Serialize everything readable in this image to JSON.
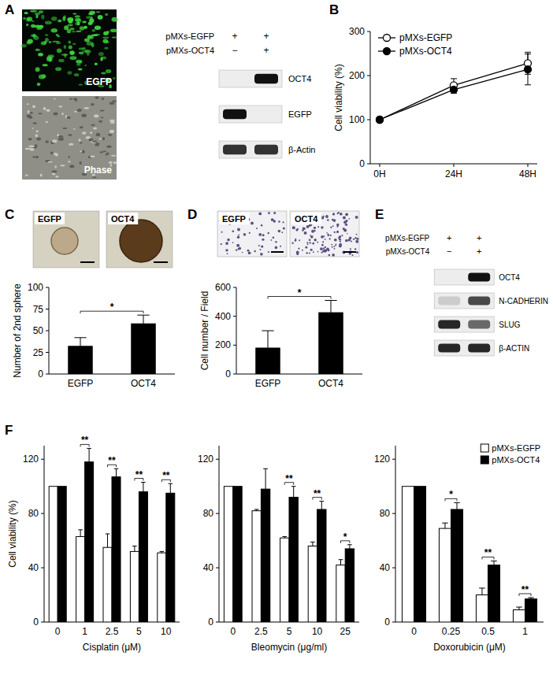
{
  "figure": {
    "panel_letters": [
      "A",
      "B",
      "C",
      "D",
      "E",
      "F"
    ],
    "panel_a": {
      "images": [
        "EGFP",
        "Phase"
      ],
      "blot": {
        "header": [
          {
            "label": "pMXs-EGFP",
            "lanes": [
              "+",
              "+"
            ]
          },
          {
            "label": "pMXs-OCT4",
            "lanes": [
              "−",
              "+"
            ]
          }
        ],
        "rows": [
          {
            "label": "OCT4",
            "signal": [
              0,
              1
            ]
          },
          {
            "label": "EGFP",
            "signal": [
              1,
              0
            ]
          },
          {
            "label": "β-Actin",
            "signal": [
              0.85,
              0.85
            ]
          }
        ]
      }
    },
    "panel_c": {
      "images": [
        "EGFP",
        "OCT4"
      ]
    },
    "panel_d": {
      "images": [
        "EGFP",
        "OCT4"
      ]
    },
    "panel_e": {
      "blot": {
        "header": [
          {
            "label": "pMXs-EGFP",
            "lanes": [
              "+",
              "+"
            ]
          },
          {
            "label": "pMXs-OCT4",
            "lanes": [
              "−",
              "+"
            ]
          }
        ],
        "rows": [
          {
            "label": "OCT4",
            "signal": [
              0,
              1
            ]
          },
          {
            "label": "N-CADHERIN",
            "signal": [
              0.15,
              0.75
            ]
          },
          {
            "label": "SLUG",
            "signal": [
              0.9,
              0.6
            ]
          },
          {
            "label": "β-ACTIN",
            "signal": [
              0.9,
              0.9
            ]
          }
        ]
      }
    }
  },
  "chart_data": [
    {
      "type": "line",
      "y_label": "Cell viability (%)",
      "categories": [
        "0H",
        "24H",
        "48H"
      ],
      "series": [
        {
          "name": "pMXs-EGFP",
          "color": "#000000",
          "marker": "open-circle",
          "values": [
            100,
            178,
            228
          ],
          "errors": [
            0,
            15,
            25
          ]
        },
        {
          "name": "pMXs-OCT4",
          "color": "#000000",
          "marker": "circle",
          "values": [
            100,
            168,
            214
          ],
          "errors": [
            0,
            8,
            35
          ]
        }
      ],
      "ylim": [
        0,
        300
      ],
      "yticks": [
        0,
        100,
        200,
        300
      ],
      "legend": "upper-left"
    },
    {
      "type": "bar",
      "y_label": "Number of 2nd sphere",
      "categories": [
        "EGFP",
        "OCT4"
      ],
      "values": [
        32,
        58
      ],
      "errors": [
        10,
        10
      ],
      "color": "#000000",
      "ylim": [
        0,
        100
      ],
      "yticks": [
        0,
        25,
        50,
        75,
        100
      ],
      "significance": "*"
    },
    {
      "type": "bar",
      "y_label": "Cell number / Field",
      "categories": [
        "EGFP",
        "OCT4"
      ],
      "values": [
        180,
        425
      ],
      "errors": [
        120,
        85
      ],
      "color": "#000000",
      "ylim": [
        0,
        600
      ],
      "yticks": [
        0,
        200,
        400,
        600
      ],
      "significance": "*"
    },
    {
      "type": "bar",
      "x_label": "Cisplatin (μM)",
      "y_label": "Cell viability (%)",
      "categories": [
        "0",
        "1",
        "2.5",
        "5",
        "10"
      ],
      "series": [
        {
          "color": "#ffffff",
          "values": [
            100,
            63,
            55,
            52,
            51
          ],
          "errors": [
            0,
            5,
            10,
            4,
            1
          ]
        },
        {
          "color": "#000000",
          "values": [
            100,
            118,
            107,
            96,
            95
          ],
          "errors": [
            0,
            10,
            6,
            7,
            7
          ]
        }
      ],
      "ylim": [
        0,
        130
      ],
      "yticks": [
        0,
        40,
        80,
        120
      ],
      "significance": [
        null,
        "**",
        "**",
        "**",
        "**"
      ]
    },
    {
      "type": "bar",
      "x_label": "Bleomycin (μg/ml)",
      "categories": [
        "0",
        "2.5",
        "5",
        "10",
        "25"
      ],
      "series": [
        {
          "color": "#ffffff",
          "values": [
            100,
            82,
            62,
            56,
            42
          ],
          "errors": [
            0,
            1,
            1,
            3,
            4
          ]
        },
        {
          "color": "#000000",
          "values": [
            100,
            98,
            92,
            83,
            54
          ],
          "errors": [
            0,
            15,
            8,
            6,
            3
          ]
        }
      ],
      "ylim": [
        0,
        130
      ],
      "yticks": [
        0,
        40,
        80,
        120
      ],
      "significance": [
        null,
        null,
        "**",
        "**",
        "*"
      ]
    },
    {
      "type": "bar",
      "x_label": "Doxorubicin (μM)",
      "categories": [
        "0",
        "0.25",
        "0.5",
        "1"
      ],
      "series": [
        {
          "name": "pMXs-EGFP",
          "color": "#ffffff",
          "values": [
            100,
            69,
            20,
            9
          ],
          "errors": [
            0,
            4,
            5,
            2
          ]
        },
        {
          "name": "pMXs-OCT4",
          "color": "#000000",
          "values": [
            100,
            83,
            42,
            17
          ],
          "errors": [
            0,
            5,
            3,
            1
          ]
        }
      ],
      "ylim": [
        0,
        130
      ],
      "yticks": [
        0,
        40,
        80,
        120
      ],
      "significance": [
        null,
        "*",
        "**",
        "**"
      ],
      "legend": "upper-right"
    }
  ]
}
